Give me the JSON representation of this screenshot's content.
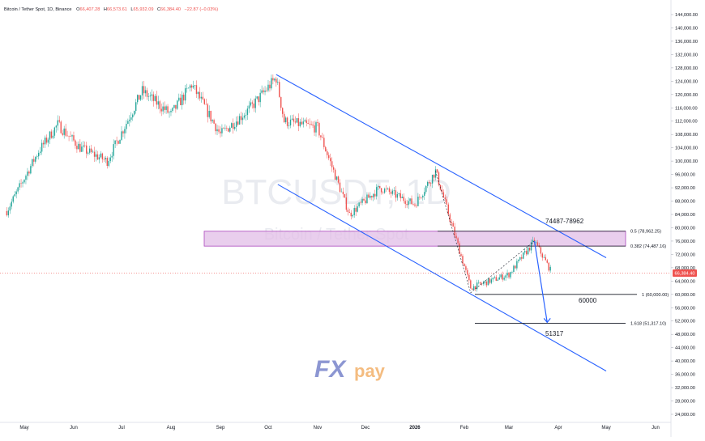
{
  "header": {
    "symbol_title": "Bitcoin / Tether Spot, 1D, Binance",
    "o_label": "O",
    "o_value": "66,407.28",
    "h_label": "H",
    "h_value": "66,573.61",
    "l_label": "L",
    "l_value": "65,932.09",
    "c_label": "C",
    "c_value": "66,384.40",
    "change": "−22.87 (−0.03%)"
  },
  "watermark": {
    "symbol": "BTCUSDT, 1D",
    "description": "Bitcoin / Tether Spot"
  },
  "logo": {
    "text_fx": "FX",
    "text_pay": "pay"
  },
  "price_tag": "66,384.40",
  "annotations": {
    "zone_label": "74487-78962",
    "target1": "60000",
    "target2": "51317"
  },
  "fib_levels": [
    {
      "ratio": "0.5",
      "label": "0.5 (78,962.25)",
      "price": 78962.25
    },
    {
      "ratio": "0.382",
      "label": "0.382 (74,487.16)",
      "price": 74487.16
    },
    {
      "ratio": "1",
      "label": "1 (60,000.00)",
      "price": 60000
    },
    {
      "ratio": "1.618",
      "label": "1.618 (51,317.10)",
      "price": 51317.1
    }
  ],
  "colors": {
    "up": "#26a69a",
    "down": "#ef5350",
    "channel": "#2962ff",
    "zone_fill": "#e1bee7",
    "zone_border": "#ab47bc",
    "logo_fx": "#5c6bc0",
    "logo_pay": "#f0a04b"
  },
  "chart_data": {
    "type": "candlestick",
    "title": "Bitcoin / Tether Spot, 1D, Binance",
    "x_ticks": [
      "May",
      "Jun",
      "Jul",
      "Aug",
      "Sep",
      "Oct",
      "Nov",
      "Dec",
      "2026",
      "Feb",
      "Mar",
      "Apr",
      "May",
      "Jun"
    ],
    "y_ticks": [
      "144,000.00",
      "140,000.00",
      "136,000.00",
      "132,000.00",
      "128,000.00",
      "124,000.00",
      "120,000.00",
      "116,000.00",
      "112,000.00",
      "108,000.00",
      "104,000.00",
      "100,000.00",
      "96,000.00",
      "92,000.00",
      "88,000.00",
      "84,000.00",
      "80,000.00",
      "76,000.00",
      "72,000.00",
      "68,000.00",
      "64,000.00",
      "60,000.00",
      "56,000.00",
      "52,000.00",
      "48,000.00",
      "44,000.00",
      "40,000.00",
      "36,000.00",
      "32,000.00",
      "28,000.00",
      "24,000.00"
    ],
    "ylim": [
      22000,
      146000
    ],
    "price_series_approx": [
      {
        "date": "2025-04-20",
        "close": 85000
      },
      {
        "date": "2025-05-10",
        "close": 103000
      },
      {
        "date": "2025-05-22",
        "close": 111000
      },
      {
        "date": "2025-06-05",
        "close": 104000
      },
      {
        "date": "2025-06-22",
        "close": 100000
      },
      {
        "date": "2025-07-14",
        "close": 121000
      },
      {
        "date": "2025-08-01",
        "close": 114000
      },
      {
        "date": "2025-08-14",
        "close": 123000
      },
      {
        "date": "2025-09-01",
        "close": 108000
      },
      {
        "date": "2025-09-20",
        "close": 116000
      },
      {
        "date": "2025-10-06",
        "close": 125000
      },
      {
        "date": "2025-10-11",
        "close": 112000
      },
      {
        "date": "2025-11-01",
        "close": 110000
      },
      {
        "date": "2025-11-21",
        "close": 84000
      },
      {
        "date": "2025-12-10",
        "close": 92000
      },
      {
        "date": "2026-01-01",
        "close": 87000
      },
      {
        "date": "2026-01-14",
        "close": 97000
      },
      {
        "date": "2026-02-05",
        "close": 62000
      },
      {
        "date": "2026-03-01",
        "close": 66000
      },
      {
        "date": "2026-03-17",
        "close": 76000
      },
      {
        "date": "2026-03-28",
        "close": 66384
      }
    ],
    "channel": {
      "upper": [
        {
          "date": "2025-10-06",
          "price": 126000
        },
        {
          "date": "2026-05-01",
          "price": 71000
        }
      ],
      "lower": [
        {
          "date": "2025-10-06",
          "price": 93000
        },
        {
          "date": "2026-05-01",
          "price": 37000
        }
      ]
    },
    "resistance_zone": [
      74487.16,
      78962.25
    ]
  }
}
